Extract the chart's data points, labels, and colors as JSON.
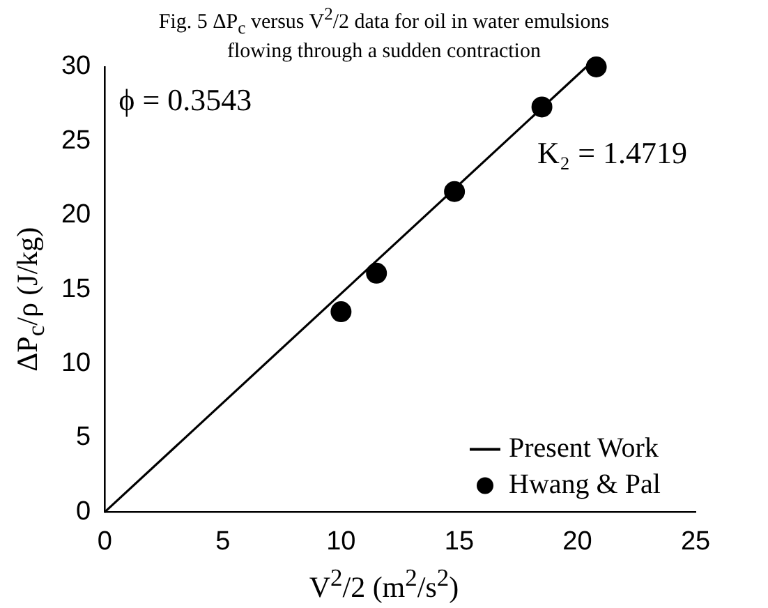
{
  "chart_data": {
    "type": "scatter",
    "title": "Fig. 5 ΔP$_{c}$ versus V$^{2}$/2 data for oil in water emulsions flowing through a sudden contraction",
    "xlabel": "V$^{2}$/2 (m$^{2}$/s$^{2}$)",
    "ylabel": "ΔP$_{c}$/ρ (J/kg)",
    "xlim": [
      0,
      25
    ],
    "xticks": [
      0,
      5,
      10,
      15,
      20,
      25
    ],
    "ylim": [
      0,
      30
    ],
    "yticks": [
      0,
      5,
      10,
      15,
      20,
      25,
      30
    ],
    "grid": false,
    "legend": "bottom right",
    "annotations": [
      "ϕ = 0.3543",
      "K₂ = 1.4719"
    ],
    "series": [
      {
        "name": "Present Work",
        "type": "line",
        "color": "#000000",
        "marker": "none",
        "line_style": "solid",
        "x": [
          0,
          20.38
        ],
        "values": [
          0,
          30
        ]
      },
      {
        "name": "Hwang & Pal",
        "color": "#000000",
        "marker": "circle",
        "x": [
          10,
          11.5,
          14.8,
          18.5,
          20.8
        ],
        "values": [
          13.5,
          16.1,
          21.6,
          27.3,
          30
        ]
      }
    ]
  }
}
